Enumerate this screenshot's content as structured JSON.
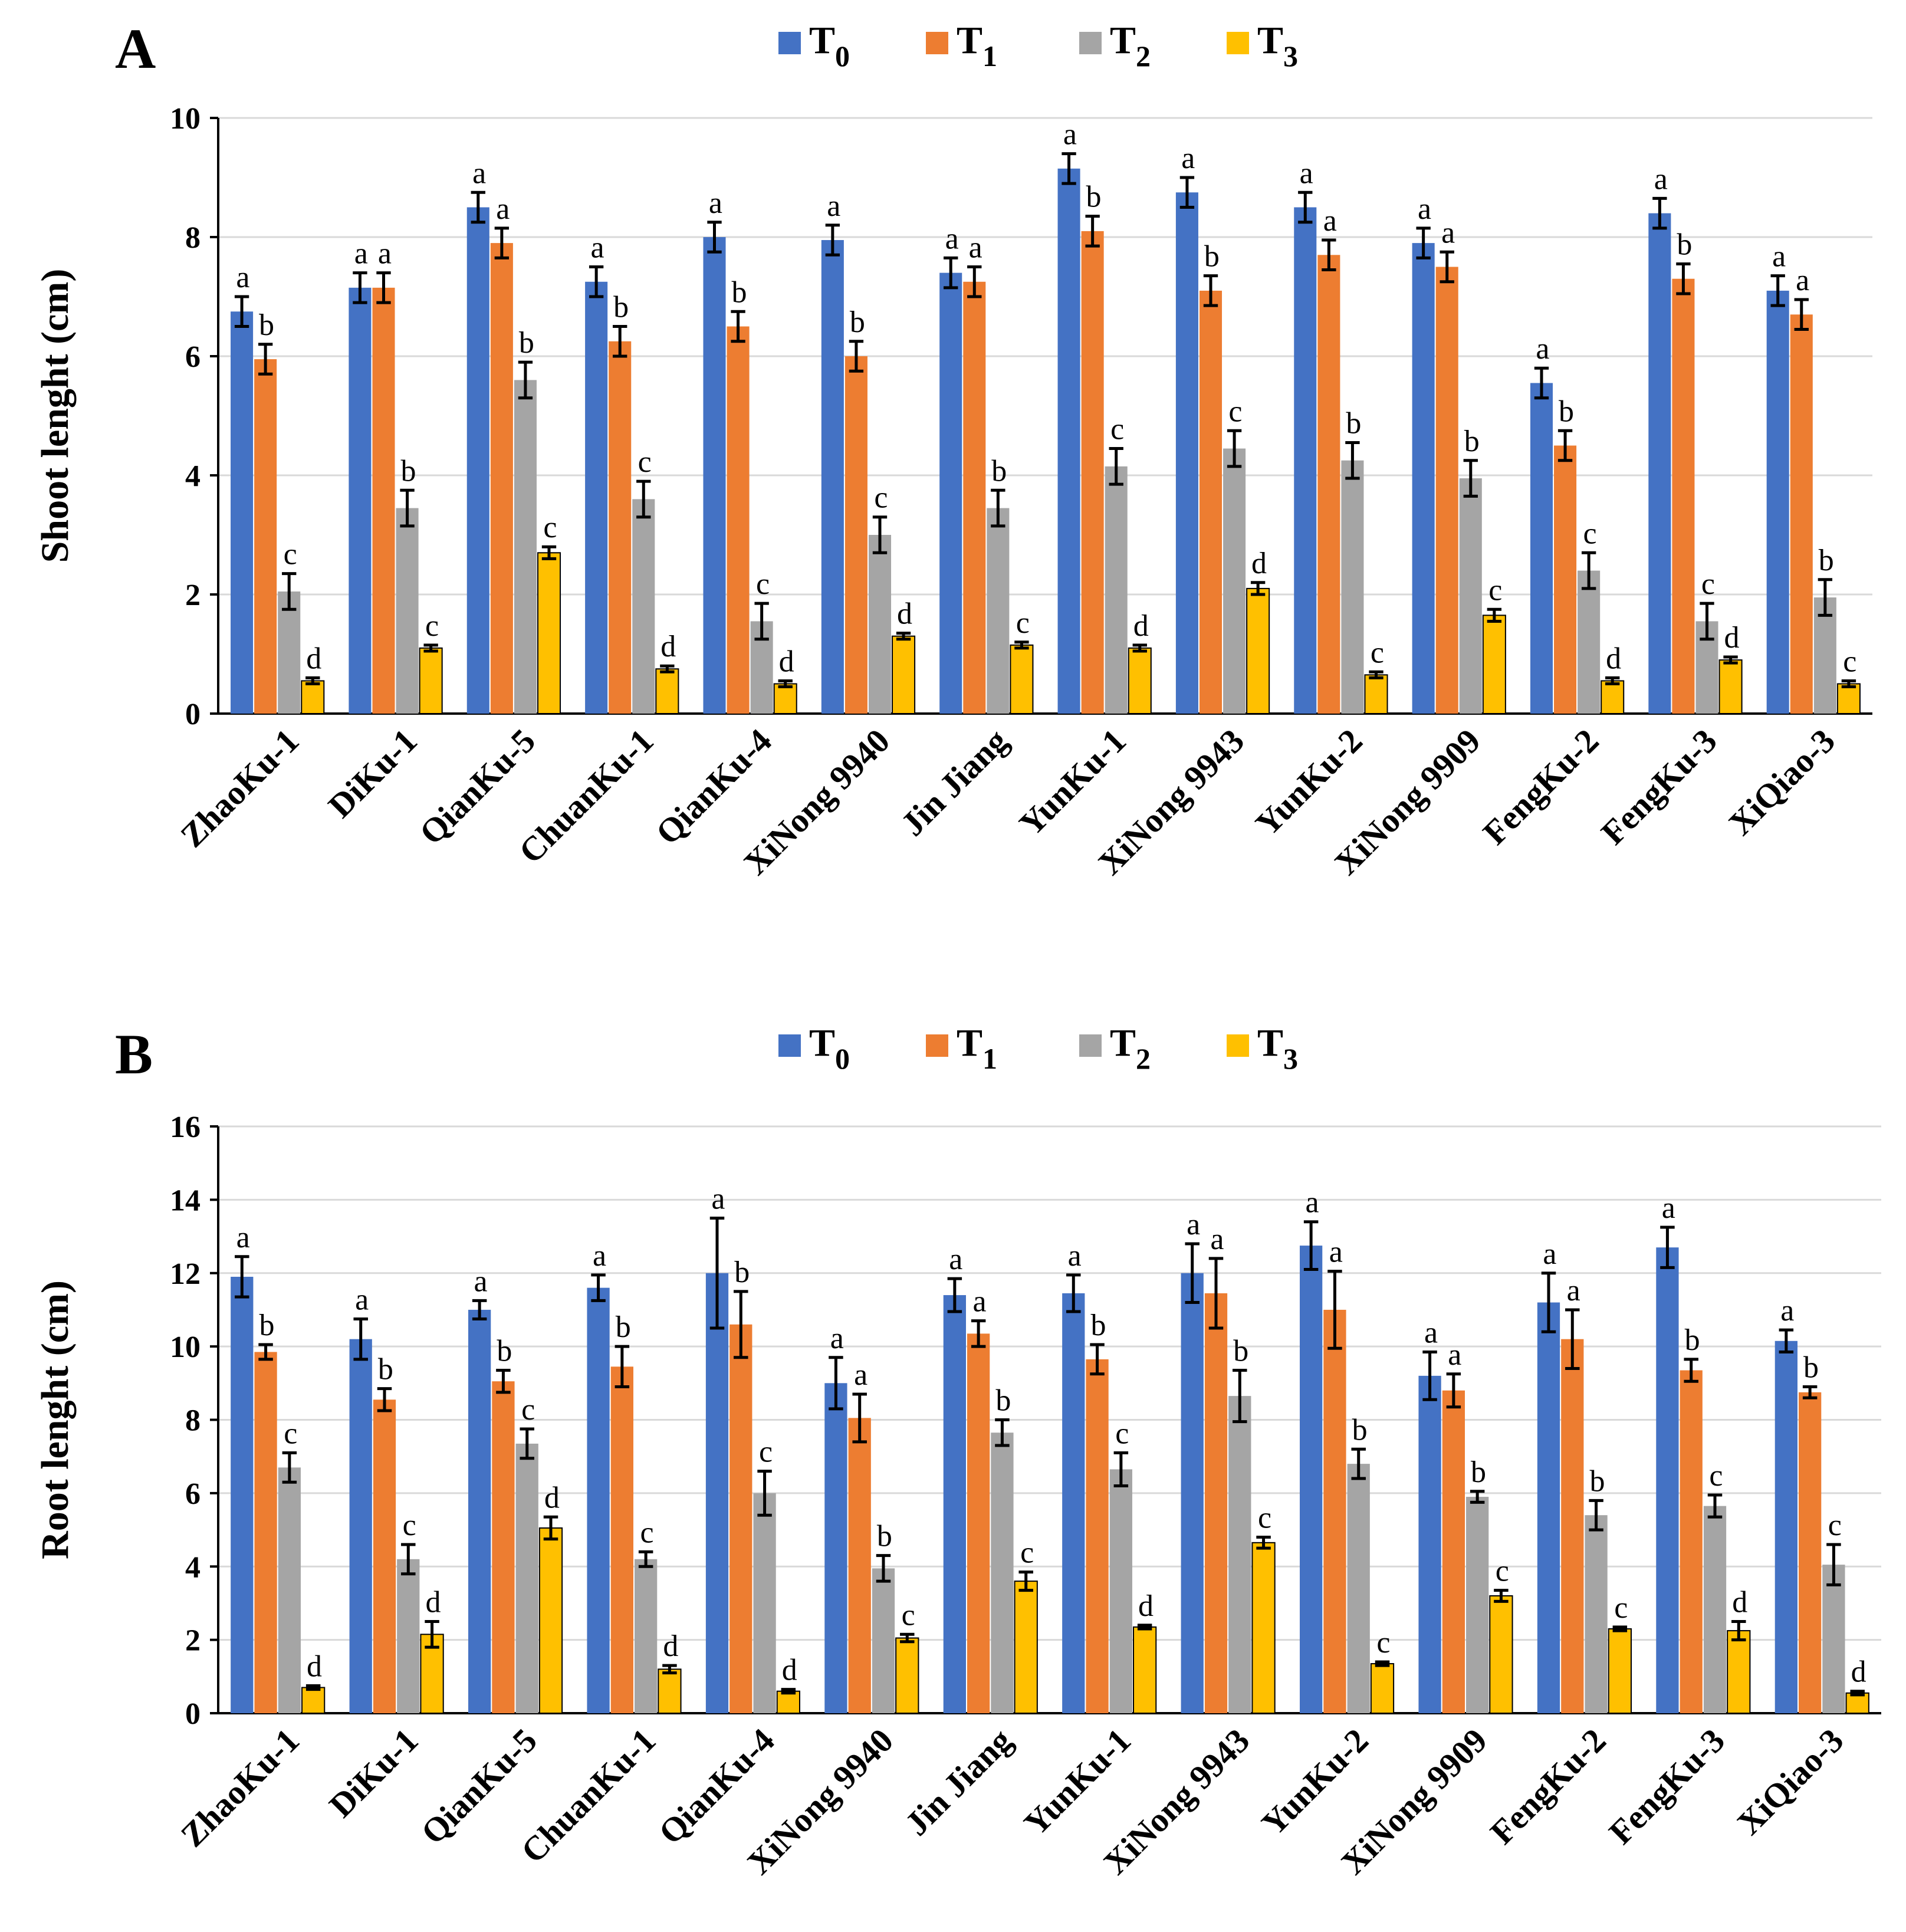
{
  "series_colors": {
    "T0": "#4472c4",
    "T1": "#ed7d31",
    "T2": "#a5a5a5",
    "T3": "#ffc000"
  },
  "chart_data": [
    {
      "type": "bar",
      "panel_label": "A",
      "title": "",
      "xlabel": "",
      "ylabel": "Shoot lenght (cm)",
      "ylim": [
        0,
        10
      ],
      "yticks": [
        "0",
        "2",
        "4",
        "6",
        "8",
        "10"
      ],
      "grid": true,
      "legend_position": "top-center",
      "legend": [
        {
          "base": "T",
          "sub": "0"
        },
        {
          "base": "T",
          "sub": "1"
        },
        {
          "base": "T",
          "sub": "2"
        },
        {
          "base": "T",
          "sub": "3"
        }
      ],
      "categories": [
        "ZhaoKu-1",
        "DiKu-1",
        "QianKu-5",
        "ChuanKu-1",
        "QianKu-4",
        "XiNong 9940",
        "Jin Jiang",
        "YunKu-1",
        "XiNong 9943",
        "YunKu-2",
        "XiNong 9909",
        "FengKu-2",
        "FengKu-3",
        "XiQiao-3"
      ],
      "series": [
        {
          "name": "T0",
          "values": [
            6.75,
            7.15,
            8.5,
            7.25,
            8.0,
            7.95,
            7.4,
            9.15,
            8.75,
            8.5,
            7.9,
            5.55,
            8.4,
            7.1
          ],
          "errors": [
            0.25,
            0.25,
            0.25,
            0.25,
            0.25,
            0.25,
            0.25,
            0.25,
            0.25,
            0.25,
            0.25,
            0.25,
            0.25,
            0.25
          ],
          "letters": [
            "a",
            "a",
            "a",
            "a",
            "a",
            "a",
            "a",
            "a",
            "a",
            "a",
            "a",
            "a",
            "a",
            "a"
          ]
        },
        {
          "name": "T1",
          "values": [
            5.95,
            7.15,
            7.9,
            6.25,
            6.5,
            6.0,
            7.25,
            8.1,
            7.1,
            7.7,
            7.5,
            4.5,
            7.3,
            6.7
          ],
          "errors": [
            0.25,
            0.25,
            0.25,
            0.25,
            0.25,
            0.25,
            0.25,
            0.25,
            0.25,
            0.25,
            0.25,
            0.25,
            0.25,
            0.25
          ],
          "letters": [
            "b",
            "a",
            "a",
            "b",
            "b",
            "b",
            "a",
            "b",
            "b",
            "a",
            "a",
            "b",
            "b",
            "a"
          ]
        },
        {
          "name": "T2",
          "values": [
            2.05,
            3.45,
            5.6,
            3.6,
            1.55,
            3.0,
            3.45,
            4.15,
            4.45,
            4.25,
            3.95,
            2.4,
            1.55,
            1.95
          ],
          "errors": [
            0.3,
            0.3,
            0.3,
            0.3,
            0.3,
            0.3,
            0.3,
            0.3,
            0.3,
            0.3,
            0.3,
            0.3,
            0.3,
            0.3
          ],
          "letters": [
            "c",
            "b",
            "b",
            "c",
            "c",
            "c",
            "b",
            "c",
            "c",
            "b",
            "b",
            "c",
            "c",
            "b"
          ]
        },
        {
          "name": "T3",
          "values": [
            0.55,
            1.1,
            2.7,
            0.75,
            0.5,
            1.3,
            1.15,
            1.1,
            2.1,
            0.65,
            1.65,
            0.55,
            0.9,
            0.5
          ],
          "errors": [
            0.05,
            0.05,
            0.1,
            0.05,
            0.05,
            0.05,
            0.05,
            0.05,
            0.1,
            0.05,
            0.1,
            0.05,
            0.05,
            0.05
          ],
          "letters": [
            "d",
            "c",
            "c",
            "d",
            "d",
            "d",
            "c",
            "d",
            "d",
            "c",
            "c",
            "d",
            "d",
            "c"
          ]
        }
      ]
    },
    {
      "type": "bar",
      "panel_label": "B",
      "title": "",
      "xlabel": "",
      "ylabel": "Root lenght (cm)",
      "ylim": [
        0,
        16
      ],
      "yticks": [
        "0",
        "2",
        "4",
        "6",
        "8",
        "10",
        "12",
        "14",
        "16"
      ],
      "grid": true,
      "legend_position": "top-center",
      "legend": [
        {
          "base": "T",
          "sub": "0"
        },
        {
          "base": "T",
          "sub": "1"
        },
        {
          "base": "T",
          "sub": "2"
        },
        {
          "base": "T",
          "sub": "3"
        }
      ],
      "categories": [
        "ZhaoKu-1",
        "DiKu-1",
        "QianKu-5",
        "ChuanKu-1",
        "QianKu-4",
        "XiNong 9940",
        "Jin Jiang",
        "YunKu-1",
        "XiNong 9943",
        "YunKu-2",
        "XiNong 9909",
        "FengKu-2",
        "FengKu-3",
        "XiQiao-3"
      ],
      "series": [
        {
          "name": "T0",
          "values": [
            11.9,
            10.2,
            11.0,
            11.6,
            12.0,
            9.0,
            11.4,
            11.45,
            12.0,
            12.75,
            9.2,
            11.2,
            12.7,
            10.15
          ],
          "errors": [
            0.55,
            0.55,
            0.25,
            0.35,
            1.5,
            0.7,
            0.45,
            0.5,
            0.8,
            0.65,
            0.65,
            0.8,
            0.55,
            0.3
          ],
          "letters": [
            "a",
            "a",
            "a",
            "a",
            "a",
            "a",
            "a",
            "a",
            "a",
            "a",
            "a",
            "a",
            "a",
            "a"
          ]
        },
        {
          "name": "T1",
          "values": [
            9.85,
            8.55,
            9.05,
            9.45,
            10.6,
            8.05,
            10.35,
            9.65,
            11.45,
            11.0,
            8.8,
            10.2,
            9.35,
            8.75
          ],
          "errors": [
            0.2,
            0.3,
            0.3,
            0.55,
            0.9,
            0.65,
            0.35,
            0.4,
            0.95,
            1.05,
            0.45,
            0.8,
            0.3,
            0.15
          ],
          "letters": [
            "b",
            "b",
            "b",
            "b",
            "b",
            "a",
            "a",
            "b",
            "a",
            "a",
            "a",
            "a",
            "b",
            "b"
          ]
        },
        {
          "name": "T2",
          "values": [
            6.7,
            4.2,
            7.35,
            4.2,
            6.0,
            3.95,
            7.65,
            6.65,
            8.65,
            6.8,
            5.9,
            5.4,
            5.65,
            4.05
          ],
          "errors": [
            0.4,
            0.4,
            0.4,
            0.2,
            0.6,
            0.35,
            0.35,
            0.45,
            0.7,
            0.4,
            0.15,
            0.4,
            0.3,
            0.55
          ],
          "letters": [
            "c",
            "c",
            "c",
            "c",
            "c",
            "b",
            "b",
            "c",
            "b",
            "b",
            "b",
            "b",
            "c",
            "c"
          ]
        },
        {
          "name": "T3",
          "values": [
            0.7,
            2.15,
            5.05,
            1.2,
            0.6,
            2.05,
            3.6,
            2.35,
            4.65,
            1.35,
            3.2,
            2.3,
            2.25,
            0.55
          ],
          "errors": [
            0.05,
            0.35,
            0.3,
            0.1,
            0.05,
            0.1,
            0.25,
            0.05,
            0.15,
            0.05,
            0.15,
            0.05,
            0.25,
            0.05
          ],
          "letters": [
            "d",
            "d",
            "d",
            "d",
            "d",
            "c",
            "c",
            "d",
            "c",
            "c",
            "c",
            "c",
            "d",
            "d"
          ]
        }
      ]
    }
  ]
}
